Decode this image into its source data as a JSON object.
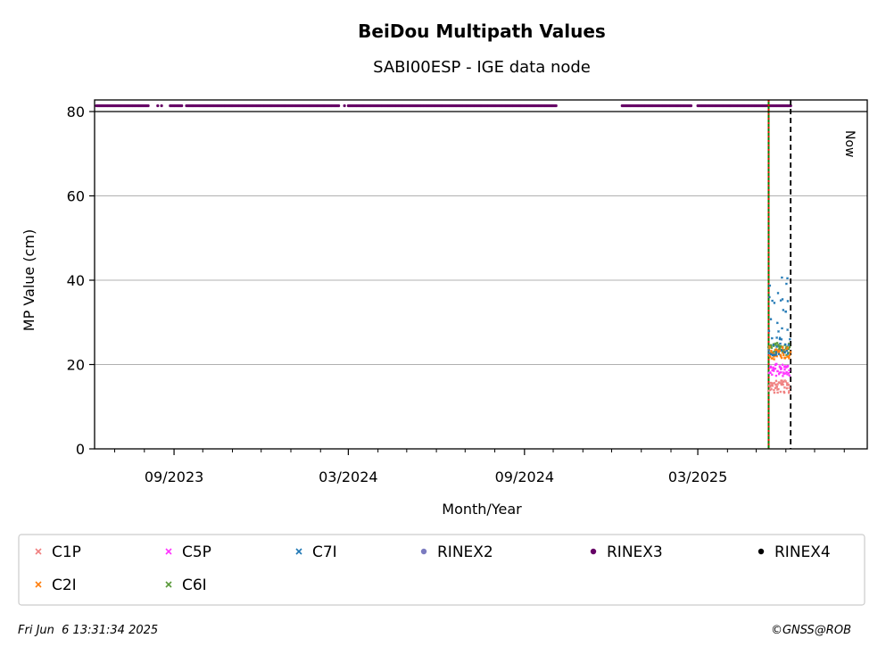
{
  "chart_data": {
    "type": "scatter",
    "title": "BeiDou Multipath Values",
    "subtitle": "SABI00ESP - IGE data node",
    "xlabel": "Month/Year",
    "ylabel": "MP Value (cm)",
    "ylim": [
      0,
      80
    ],
    "y_ticks": [
      "0",
      "20",
      "40",
      "60",
      "80"
    ],
    "x_range": [
      "2023-06-10",
      "2025-08-25"
    ],
    "x_ticks": [
      {
        "date": "2023-09-01",
        "label": "09/2023"
      },
      {
        "date": "2024-03-01",
        "label": "03/2024"
      },
      {
        "date": "2024-09-01",
        "label": "09/2024"
      },
      {
        "date": "2025-03-01",
        "label": "03/2025"
      }
    ],
    "grid": "y-major",
    "legend_placement": "bottom",
    "legend_entries": [
      "C1P",
      "C5P",
      "C7I",
      "RINEX2",
      "RINEX3",
      "RINEX4",
      "C2I",
      "C6I"
    ],
    "series": [
      {
        "name": "C1P",
        "color": "#f08080",
        "marker": "x",
        "x_range": [
          "2025-05-15",
          "2025-06-06"
        ],
        "value_range": [
          13,
          16
        ]
      },
      {
        "name": "C5P",
        "color": "#ff33ff",
        "marker": "x",
        "x_range": [
          "2025-05-15",
          "2025-06-06"
        ],
        "value_range": [
          17,
          20
        ]
      },
      {
        "name": "C7I",
        "color": "#1f77b4",
        "marker": "x",
        "x_range": [
          "2025-05-15",
          "2025-06-06"
        ],
        "value_range": [
          22,
          42
        ]
      },
      {
        "name": "C2I",
        "color": "#ff7f0e",
        "marker": "x",
        "x_range": [
          "2025-05-15",
          "2025-06-06"
        ],
        "value_range": [
          21,
          24
        ]
      },
      {
        "name": "C6I",
        "color": "#5a9a3a",
        "marker": "x",
        "x_range": [
          "2025-05-15",
          "2025-06-06"
        ],
        "value_range": [
          22,
          25
        ]
      },
      {
        "name": "RINEX2",
        "color": "#7b7bc0",
        "marker": "dot",
        "points": []
      },
      {
        "name": "RINEX3",
        "color": "#660066",
        "marker": "dot",
        "y_band": "above 80",
        "date_spans": [
          [
            "2023-06-12",
            "2023-08-05"
          ],
          [
            "2023-08-15",
            "2023-08-15"
          ],
          [
            "2023-08-19",
            "2023-08-19"
          ],
          [
            "2023-08-28",
            "2023-09-09"
          ],
          [
            "2023-09-14",
            "2024-02-20"
          ],
          [
            "2024-02-26",
            "2024-02-26"
          ],
          [
            "2024-03-01",
            "2024-10-04"
          ],
          [
            "2024-12-12",
            "2025-02-22"
          ],
          [
            "2025-03-01",
            "2025-06-06"
          ]
        ]
      },
      {
        "name": "RINEX4",
        "color": "#000000",
        "marker": "dot",
        "points": []
      }
    ],
    "vlines": [
      {
        "date": "2025-05-14",
        "color": "#008000",
        "style": "solid"
      },
      {
        "date": "2025-05-14",
        "color": "#ff0000",
        "style": "dotted"
      },
      {
        "date": "2025-06-06",
        "color": "#000000",
        "style": "dashed"
      }
    ],
    "now_label": "Now"
  },
  "footer": {
    "timestamp": "Fri Jun  6 13:31:34 2025",
    "copyright": "©GNSS@ROB"
  }
}
